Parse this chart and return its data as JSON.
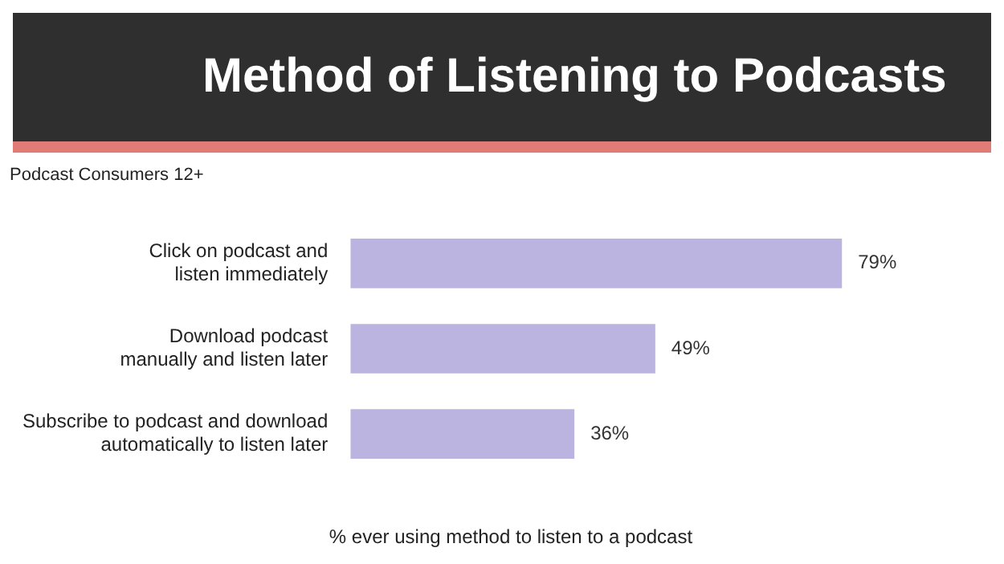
{
  "chart_data": {
    "type": "bar",
    "orientation": "horizontal",
    "title": "Method of Listening to Podcasts",
    "subtitle": "Podcast Consumers 12+",
    "xlabel": "% ever using method to listen to a podcast",
    "categories": [
      "Click on podcast and listen immediately",
      "Download podcast manually and listen later",
      "Subscribe to podcast and download automatically to listen later"
    ],
    "values": [
      79,
      49,
      36
    ],
    "value_labels": [
      "79%",
      "49%",
      "36%"
    ],
    "color": "#bcb4e0",
    "grid": false,
    "legend": false
  }
}
